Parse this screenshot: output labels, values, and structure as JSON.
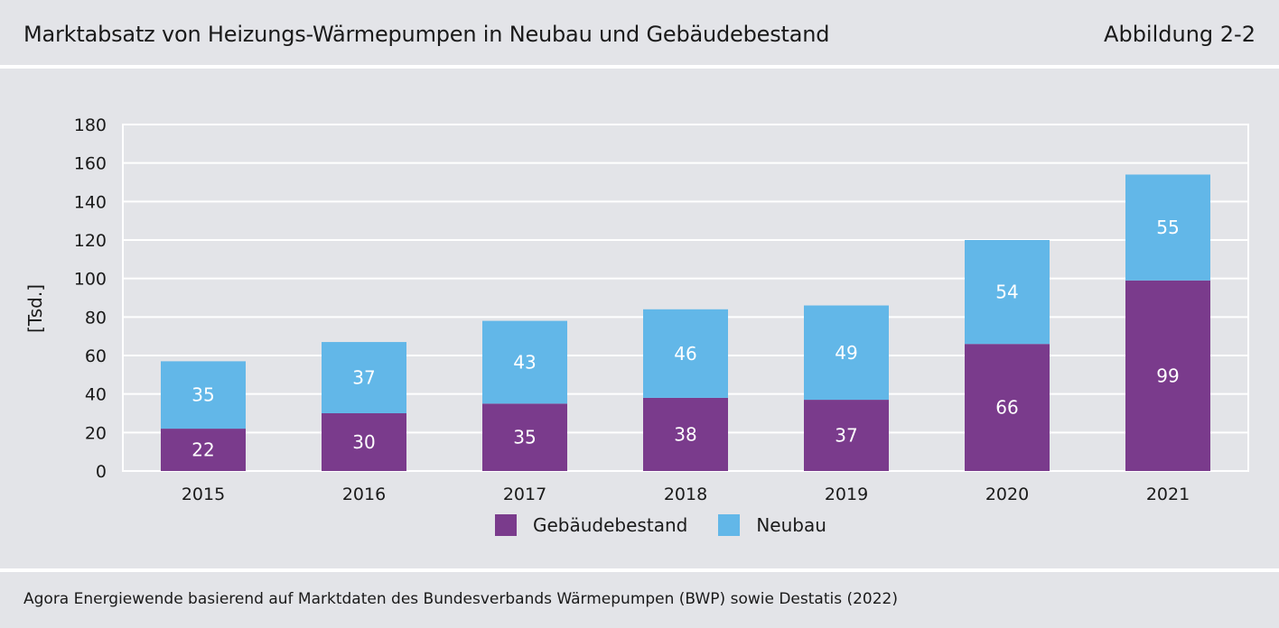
{
  "header": {
    "title": "Marktabsatz von Heizungs-Wärmepumpen in Neubau und Gebäudebestand",
    "figure_label": "Abbildung 2-2"
  },
  "footer": {
    "source": "Agora Energiewende basierend auf Marktdaten des Bundesverbands Wärmepumpen (BWP) sowie Destatis (2022)"
  },
  "colors": {
    "background": "#e3e4e8",
    "gebaeudebestand": "#7a3b8c",
    "neubau": "#62b7e8",
    "grid": "#ffffff"
  },
  "chart_data": {
    "type": "bar",
    "stacked": true,
    "title": "",
    "xlabel": "",
    "ylabel": "[Tsd.]",
    "ylim": [
      0,
      180
    ],
    "yticks": [
      0,
      20,
      40,
      60,
      80,
      100,
      120,
      140,
      160,
      180
    ],
    "categories": [
      "2015",
      "2016",
      "2017",
      "2018",
      "2019",
      "2020",
      "2021"
    ],
    "series": [
      {
        "name": "Gebäudebestand",
        "color": "#7a3b8c",
        "values": [
          22,
          30,
          35,
          38,
          37,
          66,
          99
        ]
      },
      {
        "name": "Neubau",
        "color": "#62b7e8",
        "values": [
          35,
          37,
          43,
          46,
          49,
          54,
          55
        ]
      }
    ],
    "grid": true,
    "legend_position": "bottom-center"
  }
}
